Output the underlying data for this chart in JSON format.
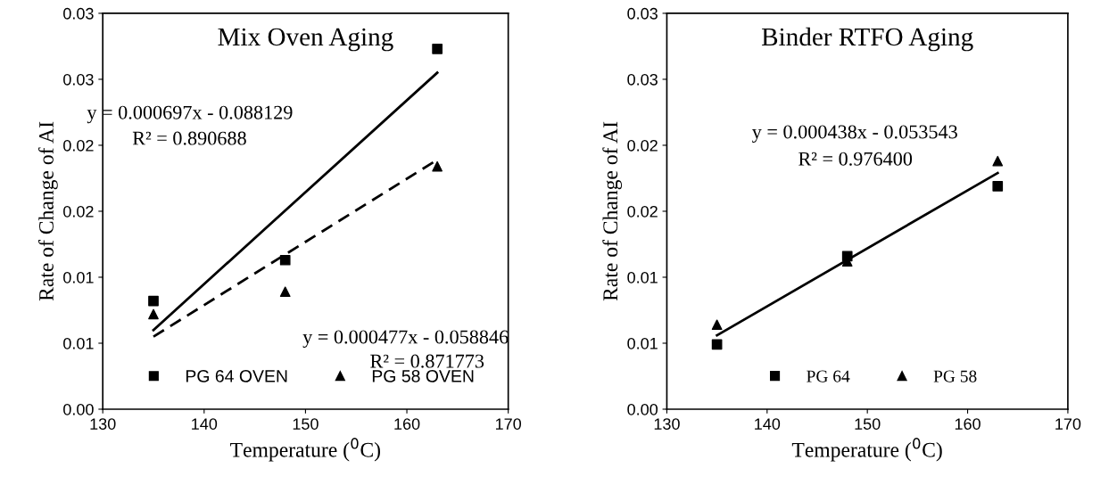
{
  "chart_data": [
    {
      "type": "scatter",
      "title": "Mix Oven Aging",
      "xlabel": "Temperature ($^{0}$C)",
      "ylabel": "Rate of Change of AI",
      "xlim": [
        130,
        170
      ],
      "xticks": [
        130,
        140,
        150,
        160,
        170
      ],
      "ylim": [
        0,
        0.03
      ],
      "yticks": [
        {
          "value": 0,
          "label": "0.00"
        },
        {
          "value": 0.005,
          "label": "0.01"
        },
        {
          "value": 0.01,
          "label": "0.01"
        },
        {
          "value": 0.015,
          "label": "0.02"
        },
        {
          "value": 0.02,
          "label": "0.02"
        },
        {
          "value": 0.025,
          "label": "0.03"
        },
        {
          "value": 0.03,
          "label": "0.03"
        }
      ],
      "grid": false,
      "legend": "bottom",
      "series": [
        {
          "name": "PG 64 OVEN",
          "color": "#000000",
          "marker": "square",
          "x": [
            135,
            148,
            163
          ],
          "values": [
            0.0082,
            0.0113,
            0.0273
          ]
        },
        {
          "name": "PG 58 OVEN",
          "color": "#000000",
          "marker": "triangle",
          "x": [
            135,
            148,
            163
          ],
          "values": [
            0.0072,
            0.0089,
            0.0184
          ]
        },
        {
          "type": "line",
          "color": "#000000",
          "line_style": "solid",
          "x": [
            135,
            163
          ],
          "values": [
            0.006,
            0.0255
          ]
        },
        {
          "type": "line",
          "color": "#000000",
          "line_style": "dashed",
          "x": [
            135,
            163
          ],
          "values": [
            0.0055,
            0.0189
          ]
        }
      ],
      "annotations": [
        "y = 0.000697x - 0.088129",
        "R² = 0.890688",
        "y = 0.000477x - 0.058846",
        "R² = 0.871773"
      ]
    },
    {
      "type": "scatter",
      "title": "Binder RTFO Aging",
      "xlabel": "Temperature ($^{0}$C)",
      "ylabel": "Rate of Change of AI",
      "xlim": [
        130,
        170
      ],
      "xticks": [
        130,
        140,
        150,
        160,
        170
      ],
      "ylim": [
        0,
        0.03
      ],
      "yticks": [
        {
          "value": 0,
          "label": "0.00"
        },
        {
          "value": 0.005,
          "label": "0.01"
        },
        {
          "value": 0.01,
          "label": "0.01"
        },
        {
          "value": 0.015,
          "label": "0.02"
        },
        {
          "value": 0.02,
          "label": "0.02"
        },
        {
          "value": 0.025,
          "label": "0.03"
        },
        {
          "value": 0.03,
          "label": "0.03"
        }
      ],
      "grid": false,
      "legend": "bottom",
      "series": [
        {
          "name": "PG 64",
          "color": "#000000",
          "marker": "square",
          "x": [
            135,
            148,
            163
          ],
          "values": [
            0.0049,
            0.0116,
            0.0169
          ]
        },
        {
          "name": "PG 58",
          "color": "#000000",
          "marker": "triangle",
          "x": [
            135,
            148,
            163
          ],
          "values": [
            0.0064,
            0.0112,
            0.0188
          ]
        },
        {
          "type": "line",
          "color": "#000000",
          "line_style": "solid",
          "x": [
            135,
            163
          ],
          "values": [
            0.0056,
            0.0179
          ]
        }
      ],
      "annotations": [
        "y = 0.000438x - 0.053543",
        "R² = 0.976400"
      ]
    }
  ]
}
